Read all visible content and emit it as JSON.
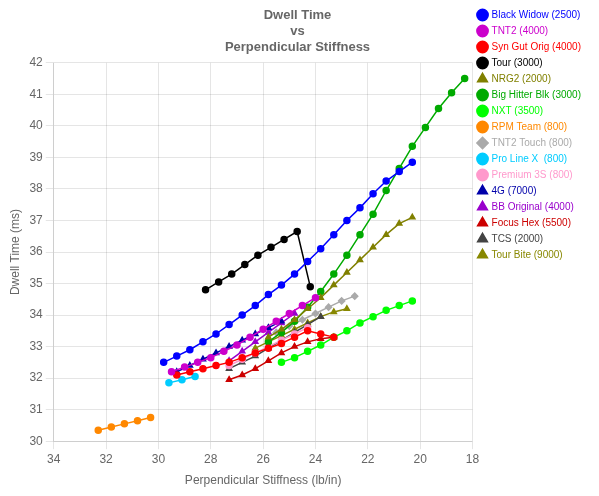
{
  "chart_data": {
    "type": "line",
    "title": "Dwell Time\nvs\nPerpendicular Stiffness",
    "xlabel": "Perpendicular Stiffness (lb/in)",
    "ylabel": "Dwell Time (ms)",
    "xlim": [
      34,
      18
    ],
    "ylim": [
      30,
      42
    ],
    "xticks": [
      34,
      32,
      30,
      28,
      26,
      24,
      22,
      20,
      18
    ],
    "yticks": [
      30,
      31,
      32,
      33,
      34,
      35,
      36,
      37,
      38,
      39,
      40,
      41,
      42
    ],
    "grid": true,
    "legend": "right",
    "series": [
      {
        "name": "Black Widow (2500)",
        "color": "#0000FF",
        "marker": "circle",
        "x": [
          29.8,
          29.3,
          28.8,
          28.3,
          27.8,
          27.3,
          26.8,
          26.3,
          25.8,
          25.3,
          24.8,
          24.3,
          23.8,
          23.3,
          22.8,
          22.3,
          21.8,
          21.3,
          20.8,
          20.3
        ],
        "values": [
          32.5,
          32.7,
          32.9,
          33.15,
          33.4,
          33.7,
          34.0,
          34.3,
          34.65,
          34.95,
          35.3,
          35.7,
          36.1,
          36.55,
          37.0,
          37.4,
          37.85,
          38.25,
          38.55,
          38.85
        ]
      },
      {
        "name": "TNT2 (4000)",
        "color": "#CC00CC",
        "marker": "circle",
        "x": [
          29.5,
          29.0,
          28.5,
          28.0,
          27.5,
          27.0,
          26.5,
          26.0,
          25.5,
          25.0,
          24.5,
          24.0
        ],
        "values": [
          32.2,
          32.35,
          32.5,
          32.65,
          32.85,
          33.05,
          33.3,
          33.55,
          33.8,
          34.05,
          34.3,
          34.55
        ]
      },
      {
        "name": "Syn Gut Orig (4000)",
        "color": "#FF0000",
        "marker": "circle",
        "x": [
          29.3,
          28.8,
          28.3,
          27.8,
          27.3,
          26.8,
          26.3,
          25.8,
          25.3,
          24.8,
          24.3,
          23.8,
          23.3
        ],
        "values": [
          32.1,
          32.2,
          32.3,
          32.4,
          32.5,
          32.65,
          32.8,
          32.95,
          33.1,
          33.3,
          33.5,
          33.4,
          33.3
        ]
      },
      {
        "name": "Tour (3000)",
        "color": "#000000",
        "marker": "circle",
        "x": [
          28.2,
          27.7,
          27.2,
          26.7,
          26.2,
          25.7,
          25.2,
          24.7,
          24.2
        ],
        "values": [
          34.8,
          35.05,
          35.3,
          35.6,
          35.9,
          36.15,
          36.4,
          36.65,
          34.9
        ]
      },
      {
        "name": "NRG2 (2000)",
        "color": "#808000",
        "marker": "triangle",
        "x": [
          25.8,
          25.3,
          24.8,
          24.3,
          23.8,
          23.3,
          22.8,
          22.3,
          21.8,
          21.3,
          20.8,
          20.3
        ],
        "values": [
          33.3,
          33.55,
          33.85,
          34.2,
          34.55,
          34.95,
          35.35,
          35.75,
          36.15,
          36.55,
          36.9,
          37.1
        ]
      },
      {
        "name": "Big Hitter Blk (3000)",
        "color": "#00AA00",
        "marker": "circle",
        "x": [
          25.8,
          25.3,
          24.8,
          24.3,
          23.8,
          23.3,
          22.8,
          22.3,
          21.8,
          21.3,
          20.8,
          20.3,
          19.8,
          19.3,
          18.8,
          18.3
        ],
        "values": [
          33.15,
          33.45,
          33.8,
          34.25,
          34.75,
          35.3,
          35.9,
          36.55,
          37.2,
          37.95,
          38.65,
          39.35,
          39.95,
          40.55,
          41.05,
          41.5
        ]
      },
      {
        "name": "NXT (3500)",
        "color": "#00FF00",
        "marker": "circle",
        "x": [
          25.3,
          24.8,
          24.3,
          23.8,
          23.3,
          22.8,
          22.3,
          21.8,
          21.3,
          20.8,
          20.3
        ],
        "values": [
          32.5,
          32.65,
          32.85,
          33.05,
          33.3,
          33.5,
          33.75,
          33.95,
          34.15,
          34.3,
          34.45
        ]
      },
      {
        "name": "RPM Team (800)",
        "color": "#FF8800",
        "marker": "circle",
        "x": [
          32.3,
          31.8,
          31.3,
          30.8,
          30.3
        ],
        "values": [
          30.35,
          30.45,
          30.55,
          30.65,
          30.75
        ]
      },
      {
        "name": "TNT2 Touch (800)",
        "color": "#AAAAAA",
        "marker": "diamond",
        "x": [
          25.5,
          25.0,
          24.5,
          24.0,
          23.5,
          23.0,
          22.5
        ],
        "values": [
          33.45,
          33.65,
          33.85,
          34.05,
          34.25,
          34.45,
          34.6
        ]
      },
      {
        "name": "Pro Line X  (800)",
        "color": "#00CCFF",
        "marker": "circle",
        "x": [
          29.6,
          29.1,
          28.6
        ],
        "values": [
          31.85,
          31.95,
          32.05
        ]
      },
      {
        "name": "Premium 3S (800)",
        "color": "#FF99CC",
        "marker": "circle",
        "x": [
          27.3,
          26.8,
          26.3,
          25.8,
          25.3,
          24.8,
          24.3
        ],
        "values": [
          32.4,
          32.6,
          32.8,
          33.0,
          33.2,
          33.4,
          33.6
        ]
      },
      {
        "name": "4G (7000)",
        "color": "#0000AA",
        "marker": "triangle",
        "x": [
          29.3,
          28.8,
          28.3,
          27.8,
          27.3,
          26.8,
          26.3,
          25.8,
          25.3
        ],
        "values": [
          32.2,
          32.4,
          32.6,
          32.8,
          33.0,
          33.2,
          33.4,
          33.6,
          33.8
        ]
      },
      {
        "name": "BB Original (4000)",
        "color": "#9900CC",
        "marker": "triangle",
        "x": [
          27.3,
          26.8,
          26.3,
          25.8,
          25.3,
          24.8
        ],
        "values": [
          32.55,
          32.85,
          33.15,
          33.45,
          33.75,
          34.05
        ]
      },
      {
        "name": "Focus Hex (5500)",
        "color": "#CC0000",
        "marker": "triangle",
        "x": [
          27.3,
          26.8,
          26.3,
          25.8,
          25.3,
          24.8,
          24.3,
          23.8,
          23.3
        ],
        "values": [
          31.95,
          32.1,
          32.3,
          32.55,
          32.8,
          33.0,
          33.15,
          33.25,
          33.3
        ]
      },
      {
        "name": "TCS (2000)",
        "color": "#444444",
        "marker": "triangle",
        "x": [
          27.3,
          26.8,
          26.3,
          25.8,
          25.3,
          24.8,
          24.3,
          23.8
        ],
        "values": [
          32.3,
          32.5,
          32.7,
          32.95,
          33.2,
          33.45,
          33.7,
          33.95
        ]
      },
      {
        "name": "Tour Bite (9000)",
        "color": "#888800",
        "marker": "triangle",
        "x": [
          26.3,
          25.8,
          25.3,
          24.8,
          24.3,
          23.8,
          23.3,
          22.8
        ],
        "values": [
          32.95,
          33.15,
          33.35,
          33.55,
          33.75,
          33.95,
          34.1,
          34.2
        ]
      }
    ]
  }
}
